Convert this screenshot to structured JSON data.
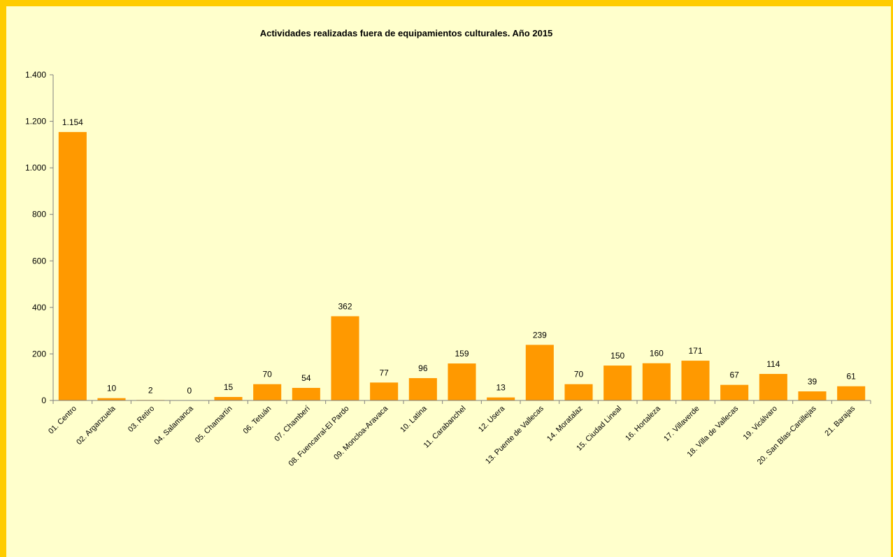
{
  "chart_data": {
    "type": "bar",
    "title": "Actividades realizadas fuera de equipamientos culturales. Año 2015",
    "xlabel": "",
    "ylabel": "",
    "ylim": [
      0,
      1400
    ],
    "y_ticks": [
      0,
      200,
      400,
      600,
      800,
      1000,
      1200,
      1400
    ],
    "y_tick_labels": [
      "0",
      "200",
      "400",
      "600",
      "800",
      "1.000",
      "1.200",
      "1.400"
    ],
    "grid": false,
    "legend": "none",
    "bar_color": "#ff9900",
    "categories": [
      "01. Centro",
      "02. Arganzuela",
      "03. Retiro",
      "04. Salamanca",
      "05. Chamartín",
      "06. Tetuán",
      "07. Chamberí",
      "08. Fuencarral-El Pardo",
      "09. Moncloa-Aravaca",
      "10. Latina",
      "11. Carabanchel",
      "12. Usera",
      "13. Puente de Vallecas",
      "14. Moratalaz",
      "15. Ciudad Lineal",
      "16. Hortaleza",
      "17. Villaverde",
      "18. Villa de Vallecas",
      "19. Vicálvaro",
      "20. San Blas-Canillejas",
      "21. Barajas"
    ],
    "values": [
      1154,
      10,
      2,
      0,
      15,
      70,
      54,
      362,
      77,
      96,
      159,
      13,
      239,
      70,
      150,
      160,
      171,
      67,
      114,
      39,
      61
    ],
    "value_labels": [
      "1.154",
      "10",
      "2",
      "0",
      "15",
      "70",
      "54",
      "362",
      "77",
      "96",
      "159",
      "13",
      "239",
      "70",
      "150",
      "160",
      "171",
      "67",
      "114",
      "39",
      "61"
    ]
  }
}
